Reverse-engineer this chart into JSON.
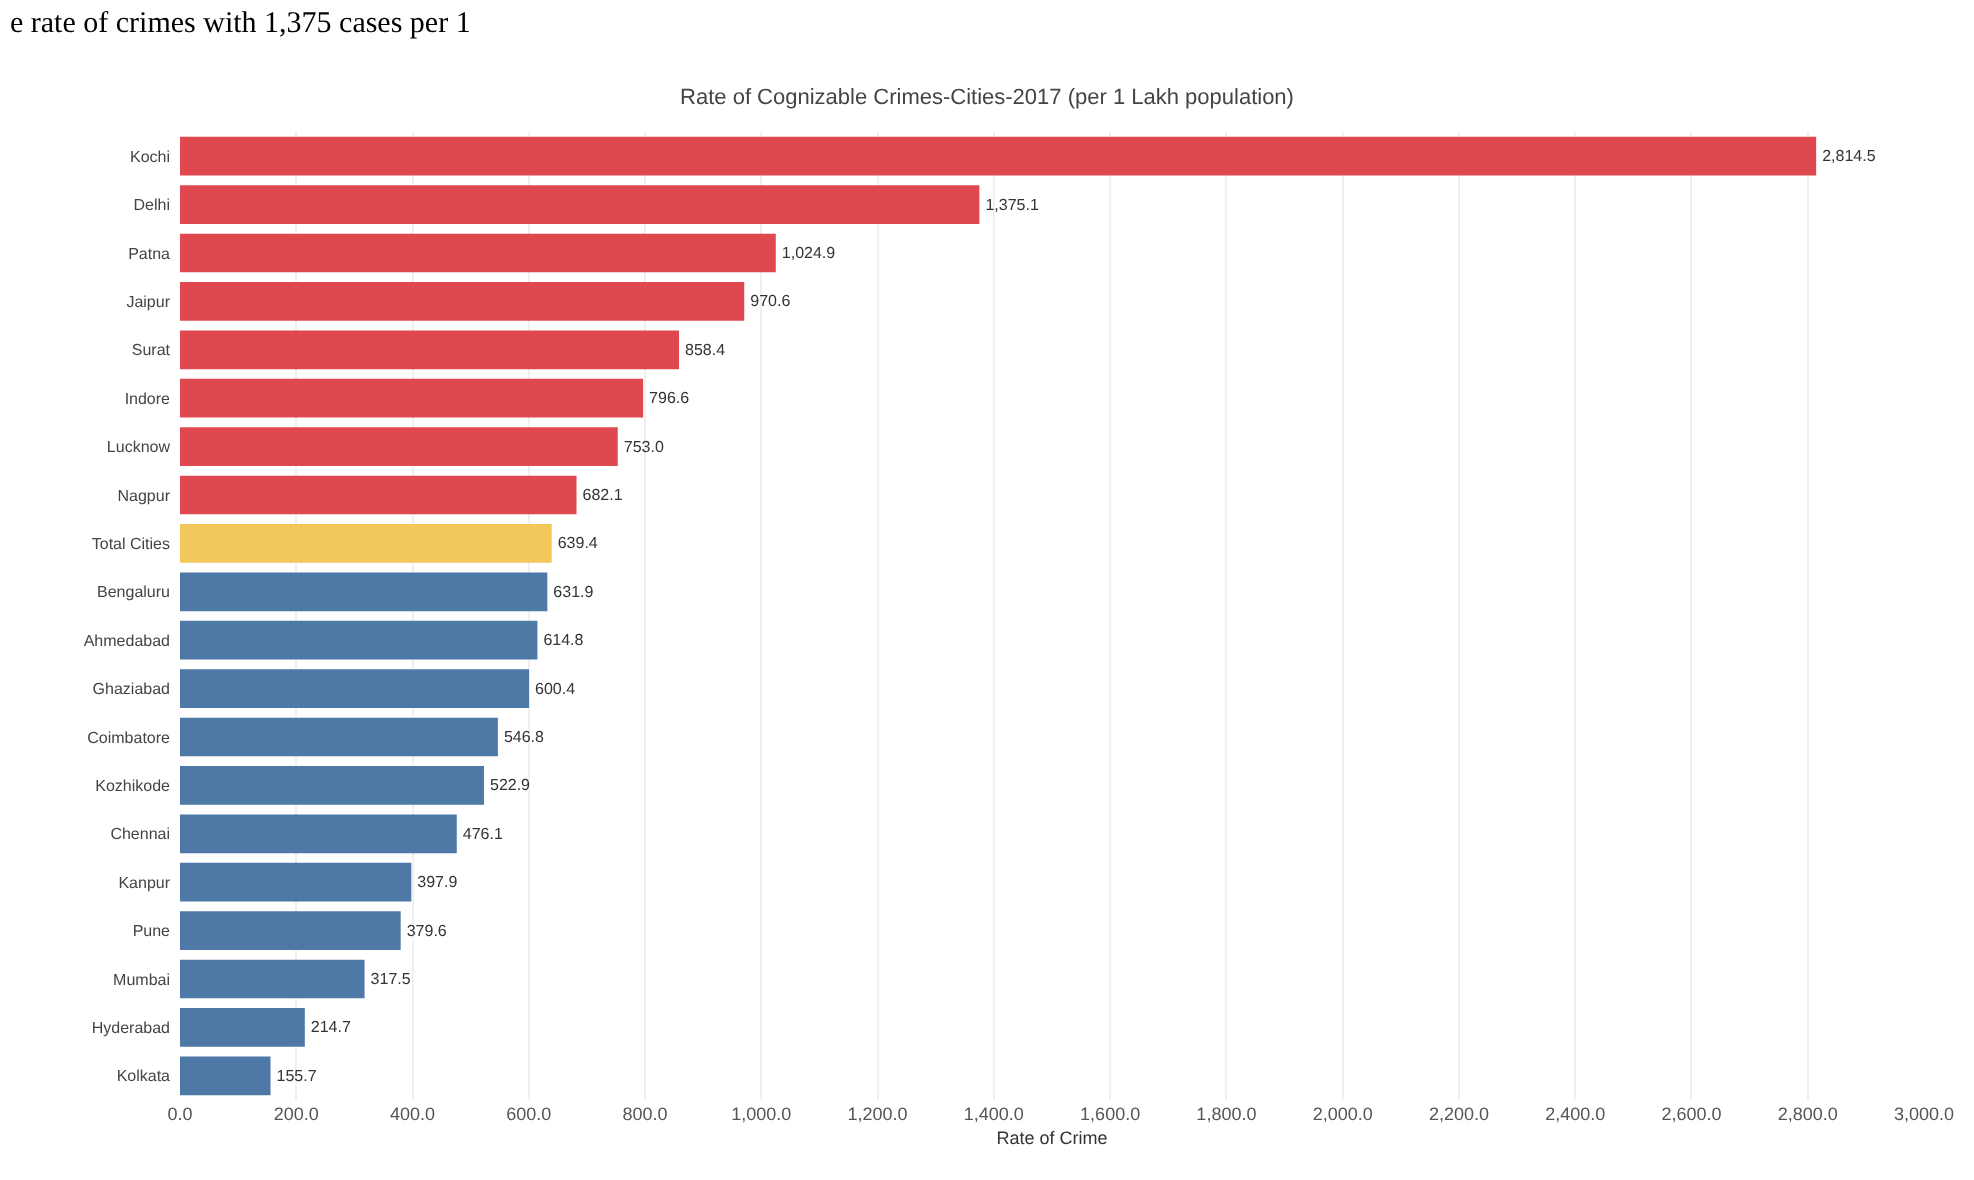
{
  "chart_data": {
    "type": "bar",
    "orientation": "horizontal",
    "title": "Rate of Cognizable Crimes-Cities-2017 (per 1 Lakh population)",
    "xlabel": "Rate of Crime",
    "annotations": [
      "e rate of crimes with 1,375 cases per 1"
    ],
    "categories": [
      "Kochi",
      "Delhi",
      "Patna",
      "Jaipur",
      "Surat",
      "Indore",
      "Lucknow",
      "Nagpur",
      "Total Cities",
      "Bengaluru",
      "Ahmedabad",
      "Ghaziabad",
      "Coimbatore",
      "Kozhikode",
      "Chennai",
      "Kanpur",
      "Pune",
      "Mumbai",
      "Hyderabad",
      "Kolkata"
    ],
    "values": [
      2814.5,
      1375.1,
      1024.9,
      970.6,
      858.4,
      796.6,
      753.0,
      682.1,
      639.4,
      631.9,
      614.8,
      600.4,
      546.8,
      522.9,
      476.1,
      397.9,
      379.6,
      317.5,
      214.7,
      155.7
    ],
    "value_labels": [
      "2,814.5",
      "1,375.1",
      "1,024.9",
      "970.6",
      "858.4",
      "796.6",
      "753.0",
      "682.1",
      "639.4",
      "631.9",
      "614.8",
      "600.4",
      "546.8",
      "522.9",
      "476.1",
      "397.9",
      "379.6",
      "317.5",
      "214.7",
      "155.7"
    ],
    "colors": [
      "#e0484f",
      "#e0484f",
      "#e0484f",
      "#e0484f",
      "#e0484f",
      "#e0484f",
      "#e0484f",
      "#e0484f",
      "#f2c75c",
      "#4e79a7",
      "#4e79a7",
      "#4e79a7",
      "#4e79a7",
      "#4e79a7",
      "#4e79a7",
      "#4e79a7",
      "#4e79a7",
      "#4e79a7",
      "#4e79a7",
      "#4e79a7"
    ],
    "xlim": [
      0,
      3000
    ],
    "xticks": [
      {
        "value": 0,
        "label": "0.0"
      },
      {
        "value": 200,
        "label": "200.0"
      },
      {
        "value": 400,
        "label": "400.0"
      },
      {
        "value": 600,
        "label": "600.0"
      },
      {
        "value": 800,
        "label": "800.0"
      },
      {
        "value": 1000,
        "label": "1,000.0"
      },
      {
        "value": 1200,
        "label": "1,200.0"
      },
      {
        "value": 1400,
        "label": "1,400.0"
      },
      {
        "value": 1600,
        "label": "1,600.0"
      },
      {
        "value": 1800,
        "label": "1,800.0"
      },
      {
        "value": 2000,
        "label": "2,000.0"
      },
      {
        "value": 2200,
        "label": "2,200.0"
      },
      {
        "value": 2400,
        "label": "2,400.0"
      },
      {
        "value": 2600,
        "label": "2,600.0"
      },
      {
        "value": 2800,
        "label": "2,800.0"
      },
      {
        "value": 3000,
        "label": "3,000.0"
      }
    ],
    "grid": "x"
  }
}
